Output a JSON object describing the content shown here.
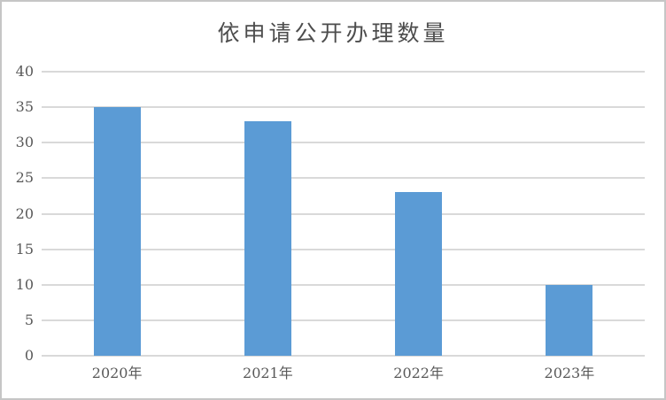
{
  "chart_data": {
    "type": "bar",
    "title": "依申请公开办理数量",
    "categories": [
      "2020年",
      "2021年",
      "2022年",
      "2023年"
    ],
    "values": [
      35,
      33,
      23,
      10
    ],
    "xlabel": "",
    "ylabel": "",
    "ylim": [
      0,
      40
    ],
    "yticks": [
      0,
      5,
      10,
      15,
      20,
      25,
      30,
      35,
      40
    ],
    "grid": "horizontal",
    "legend_position": "none",
    "bar_color": "#5B9BD5",
    "gridline_color": "#D9D9D9",
    "text_color": "#595959",
    "title_color": "#4D4D4D",
    "frame_border_color": "#C6C6C6",
    "background_color": "#FFFFFF"
  }
}
